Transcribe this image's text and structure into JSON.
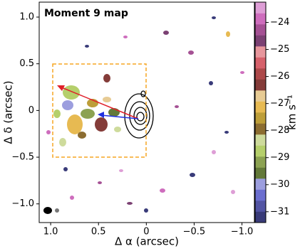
{
  "chart_data": {
    "type": "map",
    "title": "Moment 9 map",
    "xlabel": "Δ α (arcsec)",
    "ylabel": "Δ δ (arcsec)",
    "xlim": [
      1.12,
      -1.13
    ],
    "ylim": [
      -1.2,
      1.16
    ],
    "xticks": [
      {
        "value": 1,
        "label": "1.0"
      },
      0.5,
      0,
      {
        "value": -0.5,
        "label": "−0.5"
      },
      {
        "value": -1,
        "label": "−1.0"
      }
    ],
    "yticks": [
      {
        "value": -1,
        "label": "−1.0"
      },
      {
        "value": -0.5,
        "label": "−0.5"
      },
      0,
      0.5,
      {
        "value": 1,
        "label": "1.0"
      }
    ],
    "colorbar": {
      "label": "km s⁻¹",
      "lim": [
        -31.4,
        -23.25
      ],
      "ticks": [
        {
          "value": -31,
          "label": "−31"
        },
        {
          "value": -30,
          "label": "−30"
        },
        {
          "value": -29,
          "label": "−29"
        },
        {
          "value": -28,
          "label": "−28"
        },
        {
          "value": -27,
          "label": "−27"
        },
        {
          "value": -26,
          "label": "−26"
        },
        {
          "value": -25,
          "label": "−25"
        },
        {
          "value": -24,
          "label": "−24"
        }
      ],
      "colors": [
        "#393b79",
        "#5254a3",
        "#6b6ecf",
        "#9c9ede",
        "#637939",
        "#8ca252",
        "#b5cf6b",
        "#cedb9c",
        "#8c6d31",
        "#bd9e39",
        "#e7ba52",
        "#e7cb94",
        "#843c39",
        "#ad494a",
        "#d6616b",
        "#e7969c",
        "#7b4173",
        "#a55194",
        "#ce6dbd",
        "#de9ed6"
      ]
    }
  }
}
